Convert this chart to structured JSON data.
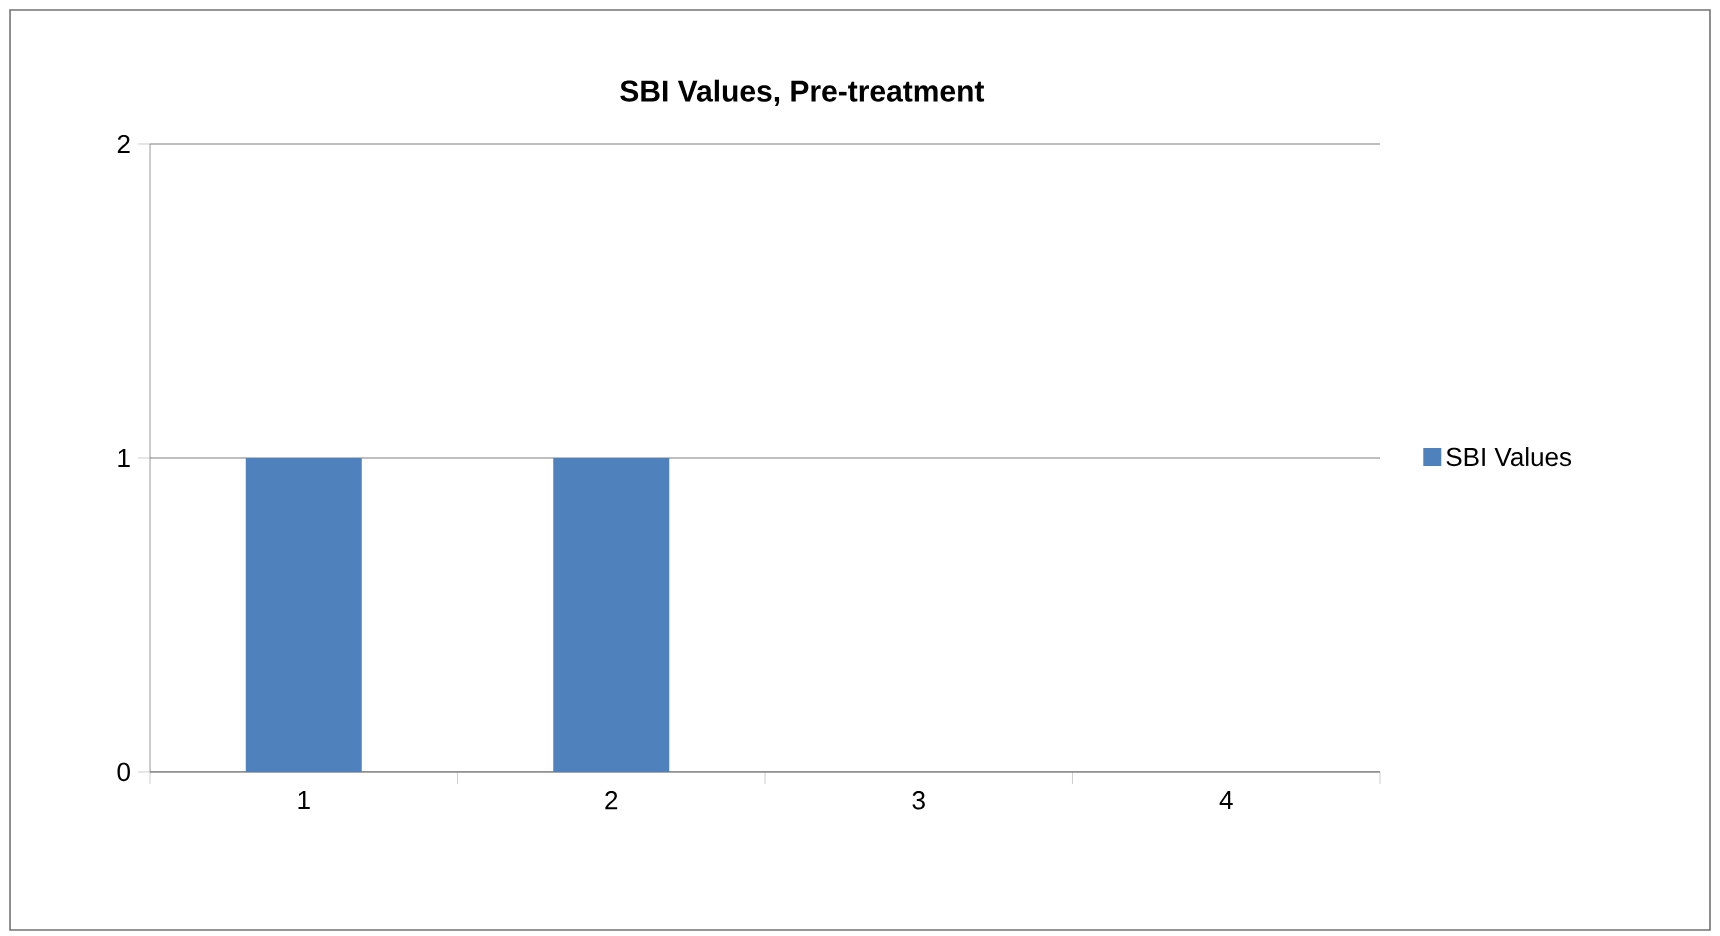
{
  "chart_data": {
    "type": "bar",
    "title": "SBI Values, Pre-treatment",
    "categories": [
      "1",
      "2",
      "3",
      "4"
    ],
    "series": [
      {
        "name": "SBI Values",
        "color": "#4f81bd",
        "values": [
          1,
          1,
          0,
          0
        ]
      }
    ],
    "ylim": [
      0,
      2
    ],
    "yticks": [
      0,
      1,
      2
    ],
    "grid": "y",
    "legend": "right"
  }
}
